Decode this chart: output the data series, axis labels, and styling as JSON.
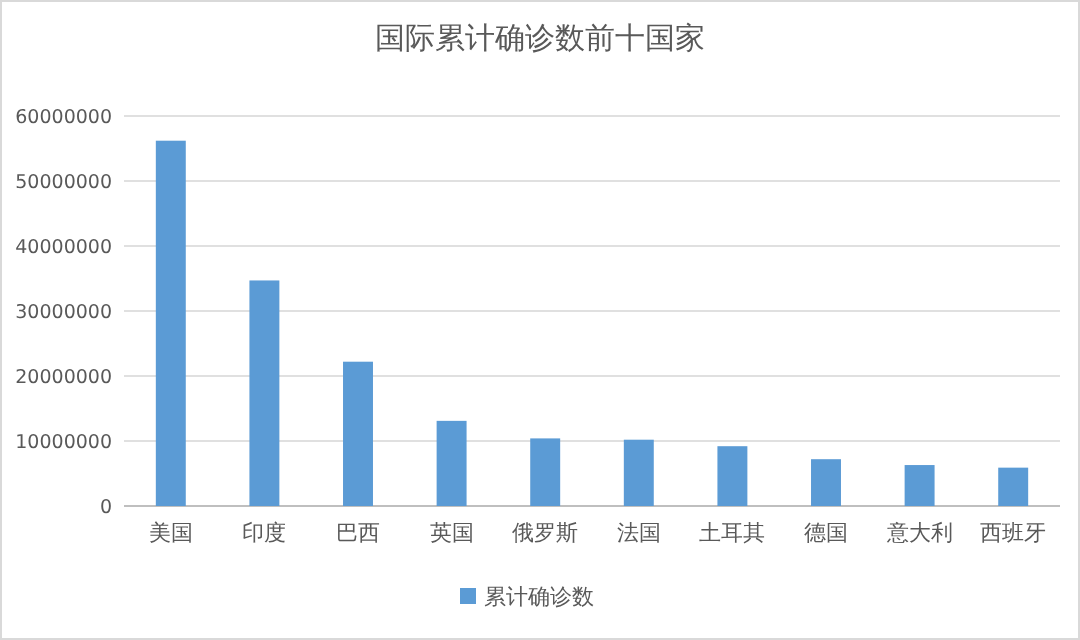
{
  "chart_data": {
    "type": "bar",
    "title": "国际累计确诊数前十国家",
    "categories": [
      "美国",
      "印度",
      "巴西",
      "英国",
      "俄罗斯",
      "法国",
      "土耳其",
      "德国",
      "意大利",
      "西班牙"
    ],
    "series": [
      {
        "name": "累计确诊数",
        "color": "#5b9bd5",
        "values": [
          56200000,
          34700000,
          22200000,
          13100000,
          10400000,
          10200000,
          9200000,
          7200000,
          6300000,
          5900000
        ]
      }
    ],
    "ylim": [
      0,
      60000000
    ],
    "yticks": [
      0,
      10000000,
      20000000,
      30000000,
      40000000,
      50000000,
      60000000
    ],
    "grid": "y",
    "legend": "bottom"
  }
}
